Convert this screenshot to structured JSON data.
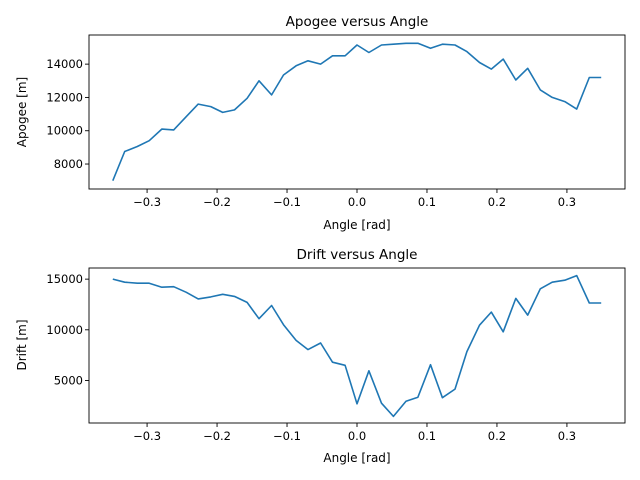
{
  "chart_data": [
    {
      "type": "line",
      "title": "Apogee versus Angle",
      "xlabel": "Angle [rad]",
      "ylabel": "Apogee [m]",
      "xlim": [
        -0.383,
        0.383
      ],
      "ylim": [
        6500,
        15750
      ],
      "xticks": [
        -0.3,
        -0.2,
        -0.1,
        0.0,
        0.1,
        0.2,
        0.3
      ],
      "xtick_labels": [
        "−0.3",
        "−0.2",
        "−0.1",
        "0.0",
        "0.1",
        "0.2",
        "0.3"
      ],
      "yticks": [
        8000,
        10000,
        12000,
        14000
      ],
      "ytick_labels": [
        "8000",
        "10000",
        "12000",
        "14000"
      ],
      "grid": false,
      "color": "#1f77b4",
      "x": [
        -0.349,
        -0.332,
        -0.314,
        -0.297,
        -0.279,
        -0.262,
        -0.244,
        -0.227,
        -0.209,
        -0.192,
        -0.175,
        -0.157,
        -0.14,
        -0.122,
        -0.105,
        -0.087,
        -0.07,
        -0.052,
        -0.035,
        -0.017,
        0.0,
        0.017,
        0.035,
        0.052,
        0.07,
        0.087,
        0.105,
        0.122,
        0.14,
        0.157,
        0.175,
        0.192,
        0.209,
        0.227,
        0.244,
        0.262,
        0.279,
        0.297,
        0.314,
        0.332,
        0.349
      ],
      "y": [
        7000,
        8750,
        9050,
        9400,
        10100,
        10050,
        10850,
        11600,
        11450,
        11100,
        11250,
        11950,
        13000,
        12150,
        13350,
        13900,
        14200,
        14000,
        14500,
        14500,
        15150,
        14700,
        15150,
        15200,
        15250,
        15250,
        14950,
        15200,
        15150,
        14750,
        14100,
        13700,
        14300,
        13050,
        13750,
        12450,
        12000,
        11750,
        11300,
        13200,
        13200
      ]
    },
    {
      "type": "line",
      "title": "Drift versus Angle",
      "xlabel": "Angle [rad]",
      "ylabel": "Drift [m]",
      "xlim": [
        -0.383,
        0.383
      ],
      "ylim": [
        800,
        16100
      ],
      "xticks": [
        -0.3,
        -0.2,
        -0.1,
        0.0,
        0.1,
        0.2,
        0.3
      ],
      "xtick_labels": [
        "−0.3",
        "−0.2",
        "−0.1",
        "0.0",
        "0.1",
        "0.2",
        "0.3"
      ],
      "yticks": [
        5000,
        10000,
        15000
      ],
      "ytick_labels": [
        "5000",
        "10000",
        "15000"
      ],
      "grid": false,
      "color": "#1f77b4",
      "x": [
        -0.349,
        -0.332,
        -0.314,
        -0.297,
        -0.279,
        -0.262,
        -0.244,
        -0.227,
        -0.209,
        -0.192,
        -0.175,
        -0.157,
        -0.14,
        -0.122,
        -0.105,
        -0.087,
        -0.07,
        -0.052,
        -0.035,
        -0.017,
        0.0,
        0.017,
        0.035,
        0.052,
        0.07,
        0.087,
        0.105,
        0.122,
        0.14,
        0.157,
        0.175,
        0.192,
        0.209,
        0.227,
        0.244,
        0.262,
        0.279,
        0.297,
        0.314,
        0.332,
        0.349
      ],
      "y": [
        15000,
        14700,
        14600,
        14600,
        14200,
        14250,
        13700,
        13050,
        13250,
        13500,
        13300,
        12700,
        11100,
        12400,
        10500,
        8950,
        8050,
        8700,
        6800,
        6500,
        2700,
        5950,
        2750,
        1450,
        2950,
        3350,
        6550,
        3300,
        4150,
        7850,
        10450,
        11750,
        9800,
        13100,
        11450,
        14050,
        14700,
        14900,
        15350,
        12650,
        12650
      ]
    }
  ]
}
